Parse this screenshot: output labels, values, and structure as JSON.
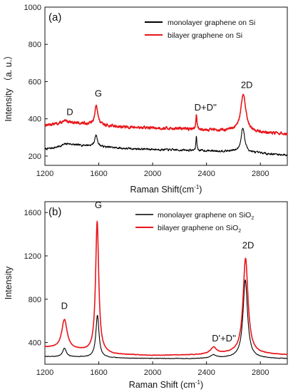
{
  "chart_data": [
    {
      "type": "line",
      "panel_label": "(a)",
      "xlabel": "Raman Shift(cm",
      "xlabel_sup": "-1",
      "xlabel_close": ")",
      "ylabel": "Intensity （a. u.）",
      "xlim": [
        1200,
        3000
      ],
      "ylim": [
        150,
        1000
      ],
      "xticks": [
        1200,
        1600,
        2000,
        2400,
        2800
      ],
      "yticks": [
        200,
        400,
        600,
        800,
        1000
      ],
      "legend_position": "top-right",
      "series": [
        {
          "name": "monolayer graphene on Si",
          "color": "#000000",
          "baseline": [
            [
              1200,
              235
            ],
            [
              1500,
              255
            ],
            [
              1800,
              240
            ],
            [
              2300,
              230
            ],
            [
              2600,
              225
            ],
            [
              3000,
              205
            ]
          ],
          "peaks": [
            [
              1365,
              20,
              60
            ],
            [
              1580,
              60,
              12
            ],
            [
              2325,
              80,
              4
            ],
            [
              2670,
              130,
              16
            ]
          ],
          "noise": 9,
          "seed": 7
        },
        {
          "name": "bilayer graphene on Si",
          "color": "#e8161b",
          "baseline": [
            [
              1200,
              365
            ],
            [
              1500,
              372
            ],
            [
              1800,
              355
            ],
            [
              2300,
              345
            ],
            [
              2600,
              335
            ],
            [
              3000,
              318
            ]
          ],
          "peaks": [
            [
              1360,
              18,
              60
            ],
            [
              1582,
              110,
              12
            ],
            [
              2325,
              85,
              4
            ],
            [
              2673,
              200,
              22
            ]
          ],
          "noise": 12,
          "seed": 13
        }
      ],
      "annotations": [
        {
          "text": "D",
          "x": 1360,
          "y": 420
        },
        {
          "text": "G",
          "x": 1570,
          "y": 520
        },
        {
          "text": "D+D''",
          "x": 2310,
          "y": 445
        },
        {
          "text": "2D",
          "x": 2655,
          "y": 565
        }
      ]
    },
    {
      "type": "line",
      "panel_label": "(b)",
      "xlabel": "Raman Shift (cm",
      "xlabel_sup": "-1",
      "xlabel_close": ")",
      "ylabel": "Intensity",
      "xlim": [
        1200,
        3000
      ],
      "ylim": [
        200,
        1700
      ],
      "xticks": [
        1200,
        1600,
        2000,
        2400,
        2800
      ],
      "yticks": [
        400,
        800,
        1200,
        1600
      ],
      "legend_position": "top-right",
      "series": [
        {
          "name": "monolayer graphene on SiO",
          "name_sub": "2",
          "color": "#000000",
          "baseline": [
            [
              1200,
              270
            ],
            [
              1500,
              265
            ],
            [
              1800,
              255
            ],
            [
              2300,
              250
            ],
            [
              2600,
              260
            ],
            [
              3000,
              250
            ]
          ],
          "peaks": [
            [
              1345,
              80,
              16
            ],
            [
              1590,
              390,
              14
            ],
            [
              2450,
              30,
              24
            ],
            [
              2688,
              720,
              20
            ]
          ],
          "noise": 4,
          "seed": 3
        },
        {
          "name": "bilayer graphene on SiO",
          "name_sub": "2",
          "color": "#e8161b",
          "baseline": [
            [
              1200,
              355
            ],
            [
              1450,
              330
            ],
            [
              1700,
              290
            ],
            [
              2000,
              280
            ],
            [
              2300,
              285
            ],
            [
              2600,
              300
            ],
            [
              3000,
              285
            ]
          ],
          "peaks": [
            [
              1345,
              270,
              24
            ],
            [
              1588,
              1210,
              14
            ],
            [
              2452,
              60,
              26
            ],
            [
              2690,
              880,
              22
            ]
          ],
          "noise": 4,
          "seed": 5
        }
      ],
      "annotations": [
        {
          "text": "D",
          "x": 1320,
          "y": 710
        },
        {
          "text": "G",
          "x": 1570,
          "y": 1640
        },
        {
          "text": "D'+D''",
          "x": 2440,
          "y": 410
        },
        {
          "text": "2D",
          "x": 2665,
          "y": 1270
        }
      ]
    }
  ]
}
